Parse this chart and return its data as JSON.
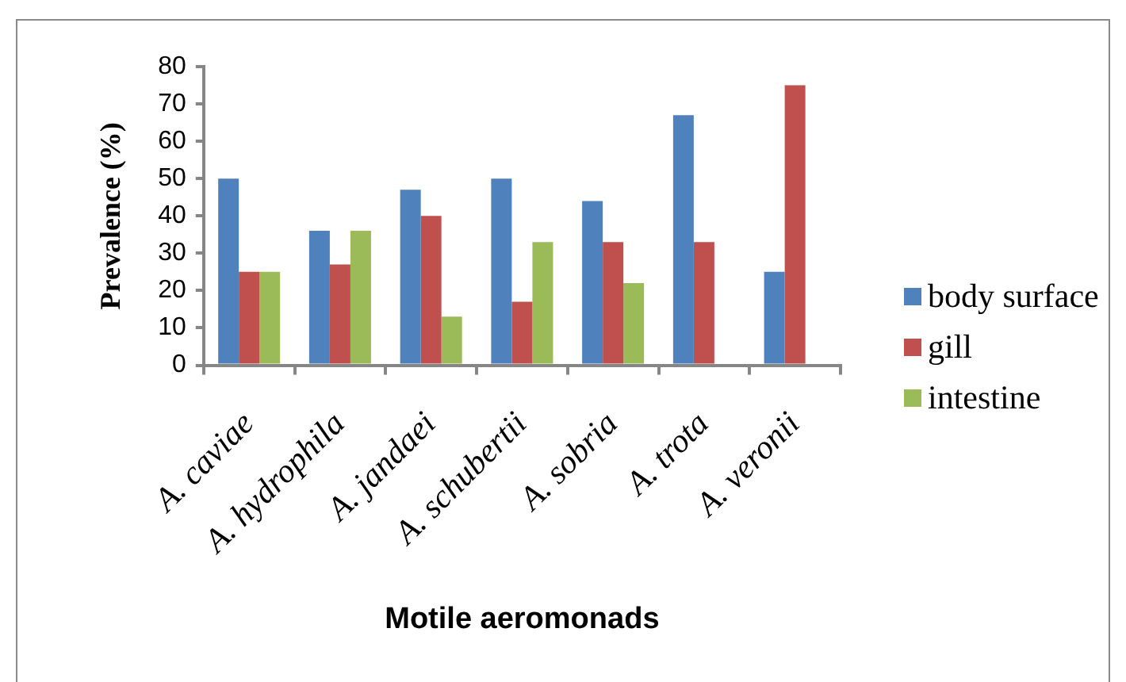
{
  "chart_data": {
    "type": "bar",
    "xlabel": "Motile aeromonads",
    "ylabel": "Prevalence (%)",
    "categories": [
      "A. caviae",
      "A. hydrophila",
      "A. jandaei",
      "A. schubertii",
      "A. sobria",
      "A. trota",
      "A. veronii"
    ],
    "series": [
      {
        "name": "body surface",
        "color": "#4f81bd",
        "values": [
          50,
          36,
          47,
          50,
          44,
          67,
          25
        ]
      },
      {
        "name": "gill",
        "color": "#c0504d",
        "values": [
          25,
          27,
          40,
          17,
          33,
          33,
          75
        ]
      },
      {
        "name": "intestine",
        "color": "#9bbb59",
        "values": [
          25,
          36,
          13,
          33,
          22,
          0,
          0
        ]
      }
    ],
    "ylim": [
      0,
      80
    ],
    "yticks": [
      0,
      10,
      20,
      30,
      40,
      50,
      60,
      70,
      80
    ],
    "legend": "right"
  }
}
